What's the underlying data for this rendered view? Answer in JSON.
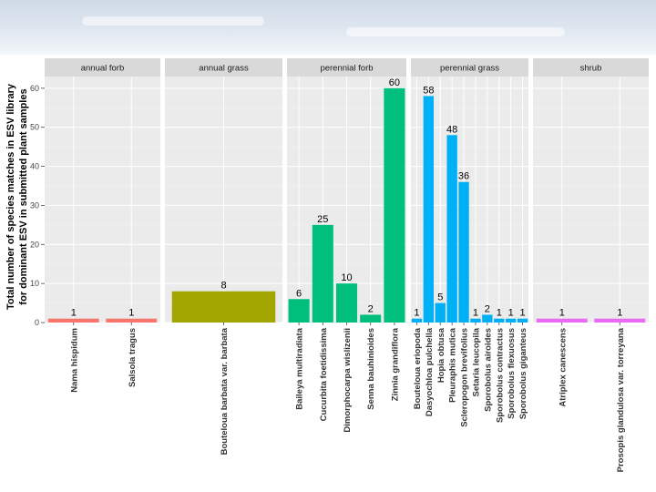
{
  "chart_data": {
    "type": "bar",
    "ylabel_lines": [
      "Total number of species matches in ESV library",
      "for dominant ESV in submitted plant samples"
    ],
    "ylim": [
      0,
      63
    ],
    "y_ticks": [
      0,
      10,
      20,
      30,
      40,
      50,
      60
    ],
    "panels": [
      {
        "name": "annual forb",
        "color": "#f8766d",
        "bars": [
          {
            "category": "Nama hispidum",
            "value": 1
          },
          {
            "category": "Salsola tragus",
            "value": 1
          }
        ]
      },
      {
        "name": "annual grass",
        "color": "#a3a500",
        "bars": [
          {
            "category": "Bouteloua barbata var. barbata",
            "value": 8
          }
        ]
      },
      {
        "name": "perennial forb",
        "color": "#00bf7d",
        "bars": [
          {
            "category": "Baileya multiradiata",
            "value": 6
          },
          {
            "category": "Cucurbita foetidissima",
            "value": 25
          },
          {
            "category": "Dimorphocarpa wislizenii",
            "value": 10
          },
          {
            "category": "Senna bauhinioides",
            "value": 2
          },
          {
            "category": "Zinnia grandiflora",
            "value": 60
          }
        ]
      },
      {
        "name": "perennial grass",
        "color": "#00b0f6",
        "bars": [
          {
            "category": "Bouteloua eriopoda",
            "value": 1
          },
          {
            "category": "Dasyochloa pulchella",
            "value": 58
          },
          {
            "category": "Hopia obtusa",
            "value": 5
          },
          {
            "category": "Pleuraphis mutica",
            "value": 48
          },
          {
            "category": "Scleropogon brevifolius",
            "value": 36
          },
          {
            "category": "Setaria leucopila",
            "value": 1
          },
          {
            "category": "Sporobolus airoides",
            "value": 2
          },
          {
            "category": "Sporobolus contractus",
            "value": 1
          },
          {
            "category": "Sporobolus flexuosus",
            "value": 1
          },
          {
            "category": "Sporobolus giganteus",
            "value": 1
          }
        ]
      },
      {
        "name": "shrub",
        "color": "#e76bf3",
        "bars": [
          {
            "category": "Atriplex canescens",
            "value": 1
          },
          {
            "category": "Prosopis glandulosa var. torreyana",
            "value": 1
          }
        ]
      }
    ]
  }
}
